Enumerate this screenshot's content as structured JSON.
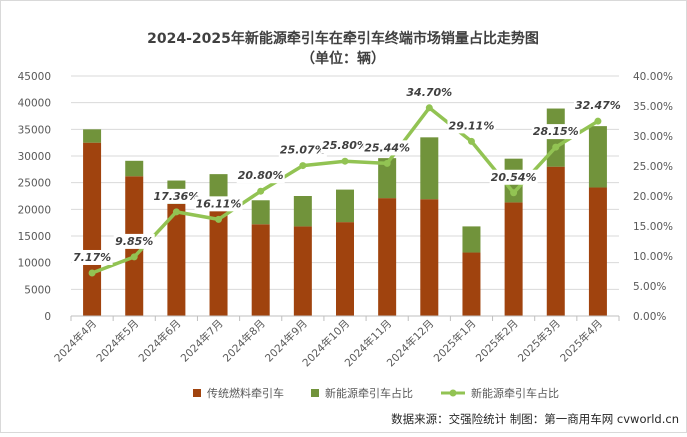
{
  "chart_data": {
    "type": "bar",
    "title": "2024-2025年新能源牵引车在牵引车终端市场销量占比走势图",
    "subtitle": "（单位：辆）",
    "categories": [
      "2024年4月",
      "2024年5月",
      "2024年6月",
      "2024年7月",
      "2024年8月",
      "2024年9月",
      "2024年10月",
      "2024年11月",
      "2024年12月",
      "2025年1月",
      "2025年2月",
      "2025年3月",
      "2025年4月"
    ],
    "series": [
      {
        "name": "传统燃料牵引车",
        "type": "bar",
        "stack": "total",
        "color": "#a0430e",
        "values": [
          32500,
          26200,
          21000,
          22300,
          17200,
          16800,
          17600,
          22100,
          21900,
          11900,
          21300,
          28000,
          24100
        ]
      },
      {
        "name": "新能源牵引车占比",
        "type": "bar",
        "stack": "total",
        "color": "#71933b",
        "values": [
          2500,
          2900,
          4400,
          4300,
          4500,
          5700,
          6100,
          7500,
          11600,
          4900,
          8200,
          10900,
          11500
        ]
      },
      {
        "name": "新能源牵引车占比",
        "type": "line",
        "axis": "right",
        "color": "#92c353",
        "values": [
          7.17,
          9.85,
          17.36,
          16.11,
          20.8,
          25.07,
          25.8,
          25.44,
          34.7,
          29.11,
          20.54,
          28.15,
          32.47
        ],
        "labels": [
          "7.17%",
          "9.85%",
          "17.36%",
          "16.11%",
          "20.80%",
          "25.07%",
          "25.80%",
          "25.44%",
          "34.70%",
          "29.11%",
          "20.54%",
          "28.15%",
          "32.47%"
        ]
      }
    ],
    "y_left": {
      "min": 0,
      "max": 45000,
      "ticks": [
        "0",
        "5000",
        "10000",
        "15000",
        "20000",
        "25000",
        "30000",
        "35000",
        "40000",
        "45000"
      ]
    },
    "y_right": {
      "min": 0,
      "max": 40,
      "ticks": [
        "0.00%",
        "5.00%",
        "10.00%",
        "15.00%",
        "20.00%",
        "25.00%",
        "30.00%",
        "35.00%",
        "40.00%"
      ]
    },
    "grid": true,
    "legend_position": "bottom"
  },
  "source_text": "数据来源：交强险统计  制图：第一商用车网 cvworld.cn"
}
